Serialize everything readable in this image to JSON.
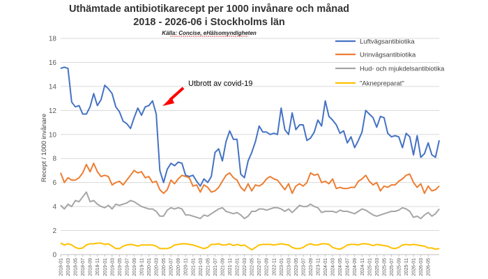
{
  "chart_data": {
    "type": "line",
    "title_line1": "Uthämtade antibiotikarecept per 1000 invånare och månad",
    "title_line2": "2018 - 2026-06 i Stockholms län",
    "source": "Källa: Concise, eHälsomyndigheten",
    "ylabel": "Recept / 1000 invånare",
    "xlabel": "",
    "ylim": [
      0,
      18
    ],
    "yticks": [
      0,
      2,
      4,
      6,
      8,
      10,
      12,
      14,
      16,
      18
    ],
    "grid": true,
    "legend_position": "right",
    "annotation": "Utbrott av covid-19",
    "x_tick_labels": [
      "2018-01",
      "2018-03",
      "2018-05",
      "2018-07",
      "2018-09",
      "2018-11",
      "2019-01",
      "2019-03",
      "2019-05",
      "2019-07",
      "2019-09",
      "2019-11",
      "2020-01",
      "2020-03",
      "2020-05",
      "2020-07",
      "2020-09",
      "2020-11",
      "2021-01",
      "2021-03",
      "2021-05",
      "2021-07",
      "2021-09",
      "2021-11",
      "2022-01",
      "2022-03",
      "2022-05",
      "2022-07",
      "2022-09",
      "2022-11",
      "2023-01",
      "2023-03",
      "2023-05",
      "2023-07",
      "2023-09",
      "2023-11",
      "2024-01",
      "2024-03",
      "2024-05",
      "2024-07",
      "2024-09",
      "2024-11",
      "2025-01",
      "2025-03",
      "2025-05",
      "2025-07",
      "2025-09",
      "2025-11",
      "2026-01",
      "2026-03",
      "2026-05"
    ],
    "series": [
      {
        "name": "Luftvägsantibiotika",
        "color": "#4472C4",
        "values": [
          15.5,
          15.6,
          15.5,
          12.7,
          12.3,
          12.4,
          11.7,
          11.7,
          12.3,
          13.4,
          12.4,
          12.9,
          14.1,
          13.8,
          13.4,
          12.3,
          11.9,
          11.1,
          10.9,
          10.5,
          11.4,
          12.2,
          11.6,
          12.3,
          12.4,
          12.8,
          11.7,
          7.0,
          6.0,
          7.1,
          7.6,
          7.4,
          7.7,
          7.6,
          6.6,
          6.5,
          6.6,
          6.1,
          5.7,
          6.3,
          6.0,
          6.5,
          8.5,
          8.8,
          7.8,
          9.4,
          10.3,
          9.6,
          9.6,
          6.7,
          6.4,
          7.8,
          8.5,
          9.4,
          10.7,
          10.2,
          10.2,
          10.0,
          10.1,
          10.0,
          12.2,
          10.4,
          10.0,
          11.8,
          10.4,
          10.8,
          10.8,
          9.5,
          9.7,
          10.2,
          11.2,
          10.7,
          12.8,
          11.5,
          11.2,
          10.8,
          10.1,
          10.3,
          9.3,
          9.8,
          8.9,
          9.5,
          10.2,
          12.0,
          11.7,
          11.4,
          10.6,
          11.5,
          11.4,
          10.1,
          9.8,
          9.9,
          9.8,
          8.9,
          10.1,
          9.8,
          8.3,
          9.9,
          8.1,
          8.4,
          9.3,
          8.3,
          8.1,
          9.5
        ]
      },
      {
        "name": "Urinvägsantibiotika",
        "color": "#ED7D31",
        "values": [
          6.8,
          6.0,
          6.4,
          6.2,
          6.2,
          6.4,
          6.8,
          7.5,
          6.9,
          7.6,
          6.9,
          6.5,
          6.6,
          6.5,
          5.8,
          6.0,
          6.1,
          5.8,
          6.2,
          6.6,
          7.0,
          6.8,
          6.9,
          6.4,
          6.5,
          6.0,
          6.1,
          5.4,
          5.1,
          5.4,
          6.2,
          5.9,
          6.3,
          6.6,
          6.5,
          6.4,
          5.7,
          5.8,
          5.2,
          5.8,
          5.6,
          5.2,
          5.3,
          5.6,
          6.1,
          6.6,
          6.8,
          6.4,
          6.2,
          5.6,
          5.3,
          5.9,
          5.3,
          5.8,
          5.7,
          5.9,
          6.3,
          6.5,
          6.3,
          6.2,
          5.8,
          5.4,
          5.9,
          5.1,
          5.7,
          5.9,
          5.7,
          6.0,
          6.8,
          6.6,
          6.7,
          6.0,
          6.1,
          5.9,
          6.3,
          5.5,
          5.6,
          5.5,
          5.5,
          5.6,
          5.6,
          6.1,
          6.3,
          6.6,
          6.1,
          5.8,
          6.0,
          5.3,
          5.7,
          5.6,
          5.8,
          5.8,
          6.1,
          6.3,
          6.6,
          6.7,
          6.0,
          5.6,
          5.9,
          5.1,
          5.7,
          5.3,
          5.4,
          5.7
        ]
      },
      {
        "name": "Hud- och  mjukdelsantibiotika",
        "color": "#A5A5A5",
        "values": [
          4.1,
          3.8,
          4.2,
          4.0,
          4.5,
          4.4,
          4.8,
          5.2,
          4.4,
          4.5,
          4.2,
          4.0,
          3.9,
          4.1,
          3.8,
          4.2,
          4.1,
          4.2,
          4.3,
          4.5,
          4.4,
          4.2,
          4.0,
          3.9,
          3.8,
          3.8,
          3.6,
          3.2,
          3.2,
          3.7,
          3.9,
          3.8,
          3.9,
          3.8,
          3.3,
          3.3,
          3.2,
          3.1,
          3.0,
          3.3,
          3.2,
          3.4,
          3.6,
          3.8,
          3.9,
          3.6,
          3.5,
          3.4,
          3.5,
          3.3,
          3.0,
          3.2,
          3.6,
          3.6,
          3.8,
          3.8,
          3.7,
          3.8,
          3.9,
          3.9,
          3.8,
          3.6,
          3.8,
          3.5,
          3.8,
          4.1,
          4.0,
          4.0,
          4.2,
          4.0,
          3.9,
          3.5,
          3.6,
          3.6,
          3.6,
          3.5,
          3.7,
          3.6,
          3.6,
          3.5,
          3.4,
          3.6,
          3.8,
          3.7,
          3.5,
          3.3,
          3.2,
          3.3,
          3.4,
          3.5,
          3.6,
          3.6,
          3.7,
          3.9,
          3.8,
          3.6,
          3.1,
          3.2,
          3.0,
          3.3,
          3.5,
          3.2,
          3.4,
          3.8
        ]
      },
      {
        "name": "\"Aknepreparat\"",
        "color": "#FFC000",
        "values": [
          0.95,
          0.8,
          0.9,
          0.8,
          0.6,
          0.5,
          0.55,
          0.8,
          0.9,
          0.9,
          0.95,
          0.95,
          0.85,
          0.9,
          0.7,
          0.5,
          0.5,
          0.7,
          0.8,
          0.85,
          0.8,
          0.7,
          0.8,
          0.8,
          0.8,
          0.8,
          0.7,
          0.5,
          0.5,
          0.5,
          0.6,
          0.8,
          0.85,
          0.9,
          0.9,
          0.85,
          0.8,
          0.7,
          0.6,
          0.5,
          0.6,
          0.85,
          0.85,
          0.9,
          0.8,
          0.8,
          0.9,
          0.75,
          0.85,
          0.75,
          0.8,
          0.6,
          0.4,
          0.6,
          0.8,
          0.85,
          0.85,
          0.85,
          0.8,
          0.85,
          0.9,
          0.85,
          0.8,
          0.6,
          0.5,
          0.5,
          0.6,
          0.8,
          0.9,
          0.8,
          0.8,
          0.9,
          0.9,
          0.85,
          0.6,
          0.5,
          0.45,
          0.6,
          0.8,
          0.85,
          0.85,
          0.8,
          0.9,
          0.9,
          0.85,
          0.75,
          0.85,
          0.8,
          0.75,
          0.7,
          0.55,
          0.5,
          0.6,
          0.8,
          0.85,
          0.8,
          0.85,
          0.8,
          0.75,
          0.7,
          0.55,
          0.55,
          0.45,
          0.5
        ]
      }
    ]
  }
}
